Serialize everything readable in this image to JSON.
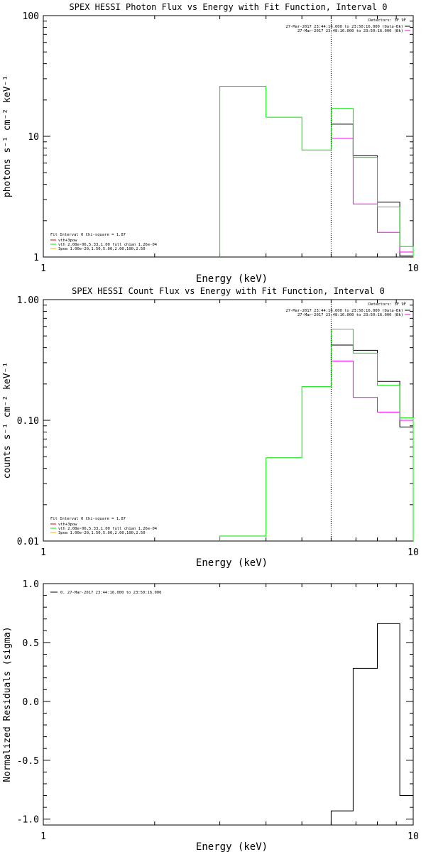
{
  "colors": {
    "axis": "#000000",
    "data_black": "#000000",
    "model_magenta": "#ff00ff",
    "model_green": "#00e600",
    "legend_red": "#e00000",
    "legend_orange": "#ffaa00",
    "marker": "#000000"
  },
  "chart_data": [
    {
      "type": "line",
      "title": "SPEX HESSI Photon Flux vs Energy with Fit Function, Interval 0",
      "xlabel": "Energy (keV)",
      "ylabel_html": "photons s⁻¹ cm⁻² keV⁻¹",
      "xscale": "log",
      "yscale": "log",
      "xlim": [
        1,
        10
      ],
      "ylim": [
        1,
        100
      ],
      "xtick_values": [
        1,
        10
      ],
      "xtick_labels": [
        "1",
        "10"
      ],
      "ytick_values": [
        1,
        10,
        100
      ],
      "ytick_labels": [
        "1",
        "10",
        "100"
      ],
      "marker_x": 6.0,
      "legend_right": {
        "header": "Detectors: 3F 9F",
        "entries": [
          {
            "label": "27-Mar-2017 23:44:16.000 to 23:50:16.000 (Data-Bk)",
            "color": "#000000"
          },
          {
            "label": "27-Mar-2017 23:48:16.000 to 23:50:16.000 (Bk)",
            "color": "#ff00ff"
          }
        ]
      },
      "legend_left": {
        "header": "Fit Interval 0   Chi-square = 1.87",
        "entries": [
          {
            "label": "vth+3pow",
            "color": "#e00000"
          },
          {
            "label": "vth 2.08e-06,5.33,1.00  full chian 1.26e-04",
            "color": "#00e600"
          },
          {
            "label": "3pow 1.00e-20,1.50,5.00,2.00,100,2.50",
            "color": "#ffaa00"
          }
        ]
      },
      "series": [
        {
          "name": "Data-Bk",
          "color": "#000000",
          "edges": [
            6.0,
            6.88,
            8.0,
            9.2,
            10.0
          ],
          "values": [
            12.6,
            6.9,
            2.85,
            1.02
          ]
        },
        {
          "name": "Bk",
          "color": "#ff00ff",
          "edges": [
            6.0,
            6.88,
            8.0,
            9.2,
            10.0
          ],
          "values": [
            9.6,
            2.75,
            1.6,
            1.1
          ]
        },
        {
          "name": "vth",
          "color": "#00e600",
          "edges": [
            3.0,
            4.0,
            5.0,
            6.0,
            6.88,
            8.0,
            9.2,
            10.0
          ],
          "values": [
            26.0,
            14.4,
            7.7,
            17.0,
            6.7,
            2.6,
            1.22
          ],
          "baseline": 1
        }
      ]
    },
    {
      "type": "line",
      "title": "SPEX HESSI Count Flux vs Energy with Fit Function, Interval 0",
      "xlabel": "Energy (keV)",
      "ylabel_html": "counts s⁻¹ cm⁻² keV⁻¹",
      "xscale": "log",
      "yscale": "log",
      "xlim": [
        1,
        10
      ],
      "ylim": [
        0.01,
        1.0
      ],
      "xtick_values": [
        1,
        10
      ],
      "xtick_labels": [
        "1",
        "10"
      ],
      "ytick_values": [
        0.01,
        0.1,
        1.0
      ],
      "ytick_labels": [
        "0.01",
        "0.10",
        "1.00"
      ],
      "marker_x": 6.0,
      "legend_right": {
        "header": "Detectors: 3F 9F",
        "entries": [
          {
            "label": "27-Mar-2017 23:44:16.000 to 23:50:16.000 (Data-Bk)",
            "color": "#000000"
          },
          {
            "label": "27-Mar-2017 23:48:16.000 to 23:50:16.000 (Bk)",
            "color": "#ff00ff"
          }
        ]
      },
      "legend_left": {
        "header": "Fit Interval 0   Chi-square = 1.87",
        "entries": [
          {
            "label": "vth+3pow",
            "color": "#e00000"
          },
          {
            "label": "vth 2.08e-06,5.33,1.00  full chian 1.26e-04",
            "color": "#00e600"
          },
          {
            "label": "3pow 1.00e-20,1.50,5.00,2.00,100,2.50",
            "color": "#ffaa00"
          }
        ]
      },
      "series": [
        {
          "name": "Data-Bk",
          "color": "#000000",
          "edges": [
            6.0,
            6.88,
            8.0,
            9.2,
            10.0
          ],
          "values": [
            0.42,
            0.38,
            0.21,
            0.088
          ]
        },
        {
          "name": "Bk",
          "color": "#ff00ff",
          "edges": [
            6.0,
            6.88,
            8.0,
            9.2,
            10.0
          ],
          "values": [
            0.31,
            0.155,
            0.117,
            0.1
          ]
        },
        {
          "name": "vth",
          "color": "#00e600",
          "edges": [
            3.0,
            4.0,
            5.0,
            6.0,
            6.88,
            8.0,
            9.2,
            10.0
          ],
          "values": [
            0.011,
            0.049,
            0.19,
            0.57,
            0.36,
            0.195,
            0.105
          ],
          "baseline": 0.01
        }
      ]
    },
    {
      "type": "line",
      "title": "",
      "xlabel": "Energy (keV)",
      "ylabel_html": "Normalized Residuals (sigma)",
      "xscale": "log",
      "yscale": "linear",
      "xlim": [
        1,
        10
      ],
      "ylim": [
        -1.05,
        1.0
      ],
      "xtick_values": [
        1,
        10
      ],
      "xtick_labels": [
        "1",
        "10"
      ],
      "ytick_values": [
        -1.0,
        -0.5,
        0.0,
        0.5,
        1.0
      ],
      "ytick_labels": [
        "-1.0",
        "-0.5",
        "0.0",
        "0.5",
        "1.0"
      ],
      "legend_left_top": {
        "entries": [
          {
            "label": "0. 27-Mar-2017 23:44:16.000 to 23:50:16.000",
            "color": "#000000"
          }
        ]
      },
      "series": [
        {
          "name": "0. 27-Mar-2017 23:44:16.000 to 23:50:16.000",
          "color": "#000000",
          "edges": [
            6.0,
            6.88,
            8.0,
            9.2,
            10.0
          ],
          "values": [
            -0.93,
            0.28,
            0.66,
            -0.8
          ],
          "baseline": -1.05
        }
      ]
    }
  ]
}
